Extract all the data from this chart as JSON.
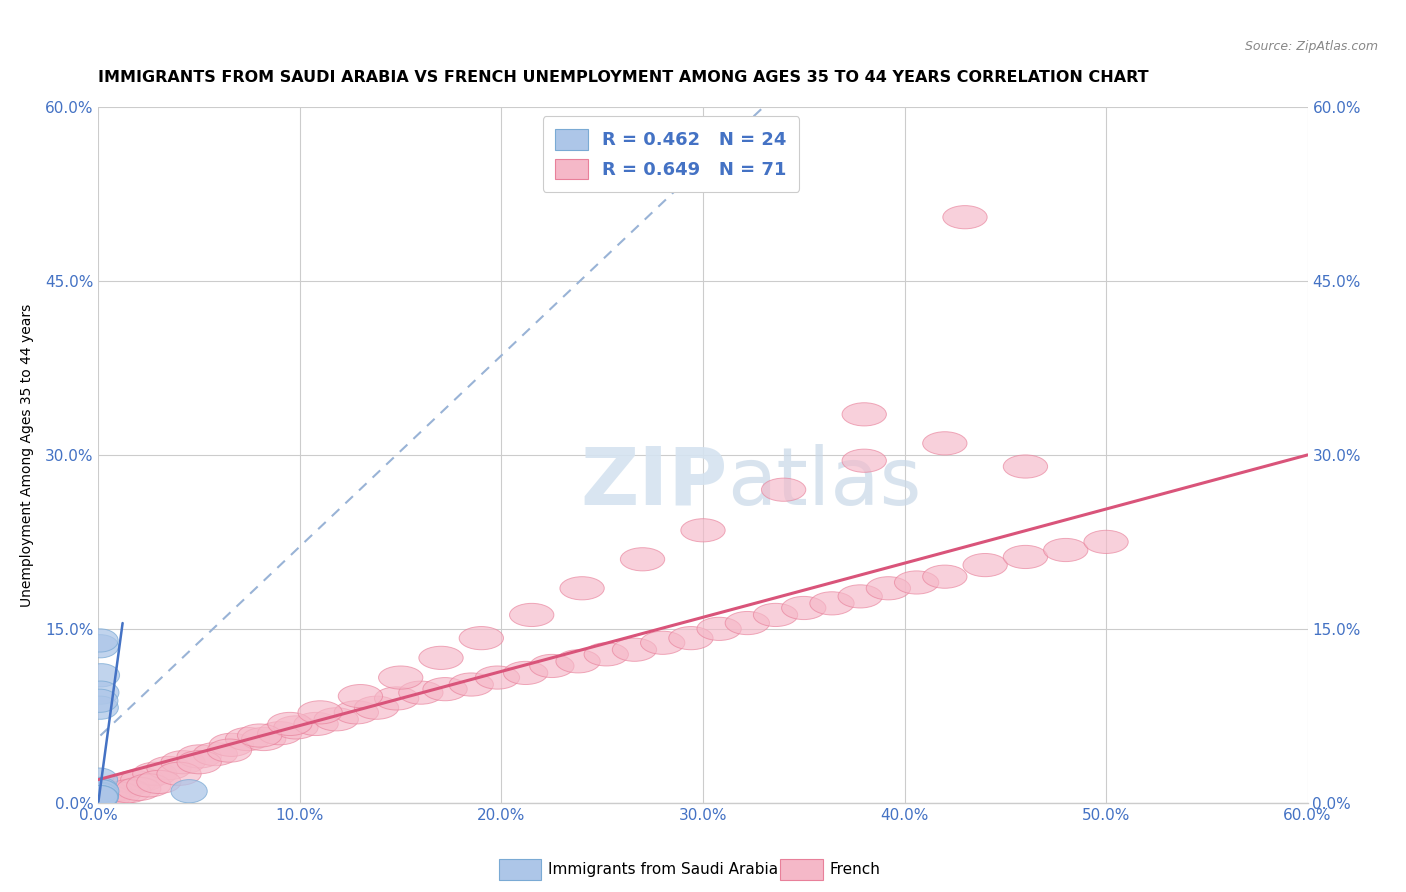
{
  "title": "IMMIGRANTS FROM SAUDI ARABIA VS FRENCH UNEMPLOYMENT AMONG AGES 35 TO 44 YEARS CORRELATION CHART",
  "source": "Source: ZipAtlas.com",
  "xlim": [
    0.0,
    0.6
  ],
  "ylim": [
    0.0,
    0.6
  ],
  "ylabel": "Unemployment Among Ages 35 to 44 years",
  "legend_labels": [
    "Immigrants from Saudi Arabia",
    "French"
  ],
  "blue_R": 0.462,
  "blue_N": 24,
  "pink_R": 0.649,
  "pink_N": 71,
  "blue_fill": "#adc6e8",
  "blue_edge": "#7aaad4",
  "pink_fill": "#f5b8c8",
  "pink_edge": "#e8809a",
  "blue_regline_color": "#4472c4",
  "blue_dashline_color": "#99b3d6",
  "pink_regline_color": "#d9547a",
  "watermark_color": "#d5e3f0",
  "grid_color": "#cccccc",
  "tick_color": "#4472c4",
  "title_fontsize": 11.5,
  "source_fontsize": 9,
  "tick_fontsize": 11,
  "ylabel_fontsize": 10,
  "x_tick_vals": [
    0.0,
    0.1,
    0.2,
    0.3,
    0.4,
    0.5,
    0.6
  ],
  "y_tick_vals": [
    0.0,
    0.15,
    0.3,
    0.45,
    0.6
  ],
  "blue_x": [
    0.0015,
    0.001,
    0.0008,
    0.0012,
    0.0009,
    0.0007,
    0.0005,
    0.0006,
    0.0008,
    0.001,
    0.0004,
    0.0006,
    0.0005,
    0.0007,
    0.0009,
    0.0005,
    0.0004,
    0.0006,
    0.0008,
    0.0003,
    0.045,
    0.0012,
    0.0008,
    0.0006
  ],
  "blue_y": [
    0.11,
    0.135,
    0.14,
    0.095,
    0.082,
    0.088,
    0.02,
    0.012,
    0.006,
    0.01,
    0.005,
    0.006,
    0.005,
    0.006,
    0.005,
    0.01,
    0.008,
    0.008,
    0.007,
    0.005,
    0.01,
    0.01,
    0.005,
    0.005
  ],
  "pink_x": [
    0.003,
    0.006,
    0.01,
    0.014,
    0.018,
    0.022,
    0.028,
    0.035,
    0.042,
    0.05,
    0.058,
    0.066,
    0.074,
    0.082,
    0.09,
    0.098,
    0.108,
    0.118,
    0.128,
    0.138,
    0.148,
    0.16,
    0.172,
    0.185,
    0.198,
    0.212,
    0.225,
    0.238,
    0.252,
    0.266,
    0.28,
    0.294,
    0.308,
    0.322,
    0.336,
    0.35,
    0.364,
    0.378,
    0.392,
    0.406,
    0.42,
    0.44,
    0.46,
    0.48,
    0.5,
    0.005,
    0.01,
    0.015,
    0.02,
    0.025,
    0.03,
    0.04,
    0.05,
    0.065,
    0.08,
    0.095,
    0.11,
    0.13,
    0.15,
    0.17,
    0.19,
    0.215,
    0.24,
    0.27,
    0.3,
    0.34,
    0.38,
    0.42,
    0.46,
    0.43,
    0.38
  ],
  "pink_y": [
    0.008,
    0.01,
    0.012,
    0.015,
    0.018,
    0.02,
    0.025,
    0.03,
    0.035,
    0.04,
    0.042,
    0.05,
    0.055,
    0.055,
    0.06,
    0.065,
    0.068,
    0.072,
    0.078,
    0.082,
    0.09,
    0.095,
    0.098,
    0.102,
    0.108,
    0.112,
    0.118,
    0.122,
    0.128,
    0.132,
    0.138,
    0.142,
    0.15,
    0.155,
    0.162,
    0.168,
    0.172,
    0.178,
    0.185,
    0.19,
    0.195,
    0.205,
    0.212,
    0.218,
    0.225,
    0.005,
    0.008,
    0.01,
    0.012,
    0.015,
    0.018,
    0.025,
    0.035,
    0.045,
    0.058,
    0.068,
    0.078,
    0.092,
    0.108,
    0.125,
    0.142,
    0.162,
    0.185,
    0.21,
    0.235,
    0.27,
    0.295,
    0.31,
    0.29,
    0.505,
    0.335
  ]
}
